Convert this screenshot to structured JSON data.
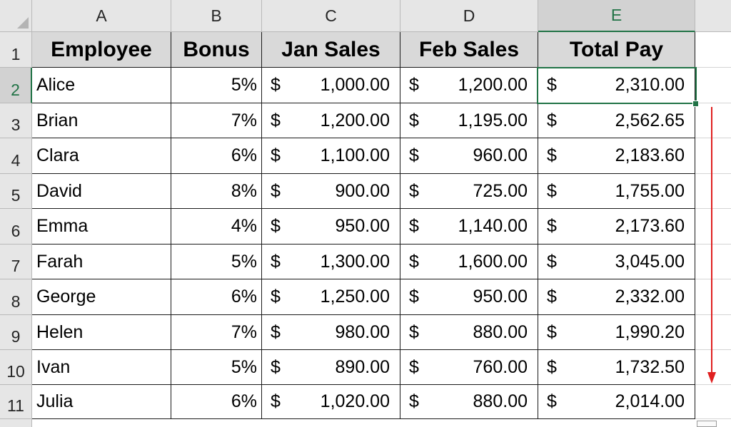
{
  "columns": [
    "A",
    "B",
    "C",
    "D",
    "E"
  ],
  "rows": [
    "1",
    "2",
    "3",
    "4",
    "5",
    "6",
    "7",
    "8",
    "9",
    "10",
    "11"
  ],
  "headers": [
    "Employee",
    "Bonus",
    "Jan Sales",
    "Feb Sales",
    "Total Pay"
  ],
  "currency_symbol": "$",
  "data": [
    {
      "employee": "Alice",
      "bonus": "5%",
      "jan": "1,000.00",
      "feb": "1,200.00",
      "total": "2,310.00"
    },
    {
      "employee": "Brian",
      "bonus": "7%",
      "jan": "1,200.00",
      "feb": "1,195.00",
      "total": "2,562.65"
    },
    {
      "employee": "Clara",
      "bonus": "6%",
      "jan": "1,100.00",
      "feb": "960.00",
      "total": "2,183.60"
    },
    {
      "employee": "David",
      "bonus": "8%",
      "jan": "900.00",
      "feb": "725.00",
      "total": "1,755.00"
    },
    {
      "employee": "Emma",
      "bonus": "4%",
      "jan": "950.00",
      "feb": "1,140.00",
      "total": "2,173.60"
    },
    {
      "employee": "Farah",
      "bonus": "5%",
      "jan": "1,300.00",
      "feb": "1,600.00",
      "total": "3,045.00"
    },
    {
      "employee": "George",
      "bonus": "6%",
      "jan": "1,250.00",
      "feb": "950.00",
      "total": "2,332.00"
    },
    {
      "employee": "Helen",
      "bonus": "7%",
      "jan": "980.00",
      "feb": "880.00",
      "total": "1,990.20"
    },
    {
      "employee": "Ivan",
      "bonus": "5%",
      "jan": "890.00",
      "feb": "760.00",
      "total": "1,732.50"
    },
    {
      "employee": "Julia",
      "bonus": "6%",
      "jan": "1,020.00",
      "feb": "880.00",
      "total": "2,014.00"
    }
  ],
  "selected_cell": "E2",
  "colors": {
    "selection": "#217346",
    "arrow": "#e02020",
    "header_fill": "#d9d9d9"
  }
}
